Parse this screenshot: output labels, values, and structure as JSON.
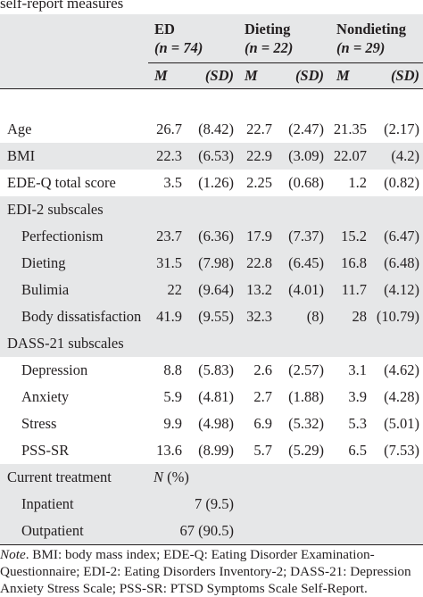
{
  "caption": "self-report measures",
  "groups": [
    {
      "name": "ED",
      "n_label": "(n = 74)"
    },
    {
      "name": "Dieting",
      "n_label": "(n = 22)"
    },
    {
      "name": "Nondieting",
      "n_label": "(n = 29)"
    }
  ],
  "subheaders": {
    "mean": "M",
    "sd": "(SD)"
  },
  "rows": [
    {
      "label": "Age",
      "v": [
        "26.7",
        "(8.42)",
        "22.7",
        "(2.47)",
        "21.35",
        "(2.17)"
      ]
    },
    {
      "label": "BMI",
      "v": [
        "22.3",
        "(6.53)",
        "22.9",
        "(3.09)",
        "22.07",
        "(4.2)"
      ]
    },
    {
      "label": "EDE-Q total score",
      "v": [
        "3.5",
        "(1.26)",
        "2.25",
        "(0.68)",
        "1.2",
        "(0.82)"
      ]
    },
    {
      "label": "EDI-2 subscales"
    },
    {
      "label": "Perfectionism",
      "v": [
        "23.7",
        "(6.36)",
        "17.9",
        "(7.37)",
        "15.2",
        "(6.47)"
      ]
    },
    {
      "label": "Dieting",
      "v": [
        "31.5",
        "(7.98)",
        "22.8",
        "(6.45)",
        "16.8",
        "(6.48)"
      ]
    },
    {
      "label": "Bulimia",
      "v": [
        "22",
        "(9.64)",
        "13.2",
        "(4.01)",
        "11.7",
        "(4.12)"
      ]
    },
    {
      "label": "Body dissatisfaction",
      "v": [
        "41.9",
        "(9.55)",
        "32.3",
        "(8)",
        "28",
        "(10.79)"
      ]
    },
    {
      "label": "DASS-21 subscales"
    },
    {
      "label": "Depression",
      "v": [
        "8.8",
        "(5.83)",
        "2.6",
        "(2.57)",
        "3.1",
        "(4.62)"
      ]
    },
    {
      "label": "Anxiety",
      "v": [
        "5.9",
        "(4.81)",
        "2.7",
        "(1.88)",
        "3.9",
        "(4.28)"
      ]
    },
    {
      "label": "Stress",
      "v": [
        "9.9",
        "(4.98)",
        "6.9",
        "(5.32)",
        "5.3",
        "(5.01)"
      ]
    },
    {
      "label": "PSS-SR",
      "v": [
        "13.6",
        "(8.99)",
        "5.7",
        "(5.29)",
        "6.5",
        "(7.53)"
      ]
    },
    {
      "label": "Current treatment",
      "extra": "N (%)"
    },
    {
      "label": "Inpatient",
      "v": [
        "7 (9.5)"
      ]
    },
    {
      "label": "Outpatient",
      "v": [
        "67 (90.5)"
      ]
    }
  ],
  "note": {
    "label": "Note",
    "lines": [
      ". BMI: body mass index; EDE-Q: Eating Disorder Examination-",
      "Questionnaire; EDI-2: Eating Disorders Inventory-2; DASS-21: Depression",
      "Anxiety Stress Scale; PSS-SR: PTSD Symptoms Scale Self-Report."
    ]
  }
}
